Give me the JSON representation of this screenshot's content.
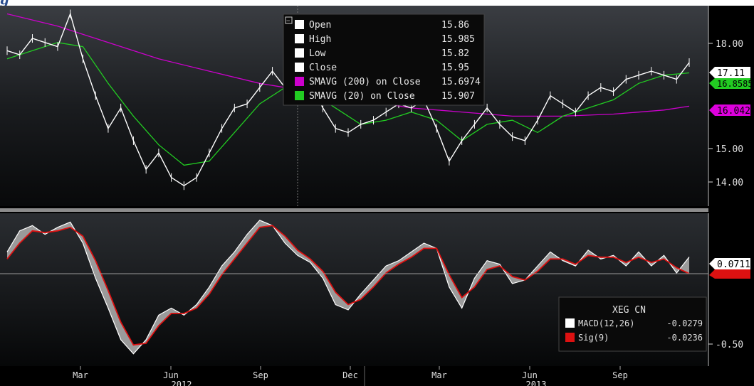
{
  "header": {
    "title_fragment": "g"
  },
  "colors": {
    "background": "#000000",
    "price": "#ffffff",
    "sma200": "#cc00cc",
    "sma20": "#22cc22",
    "macd_fill": "#9a9a9a",
    "signal": "#dd1111",
    "separator": "#8c8c8c",
    "axis_text": "#e0e0e0"
  },
  "legend_top": {
    "items": [
      {
        "label": "Open",
        "value": "15.86",
        "swatch": "#ffffff"
      },
      {
        "label": "High",
        "value": "15.985",
        "swatch": "#ffffff"
      },
      {
        "label": "Low",
        "value": "15.82",
        "swatch": "#ffffff"
      },
      {
        "label": "Close",
        "value": "15.95",
        "swatch": "#ffffff"
      },
      {
        "label": "SMAVG (200) on Close",
        "value": "15.6974",
        "swatch": "#cc00cc"
      },
      {
        "label": "SMAVG (20) on Close",
        "value": "15.907",
        "swatch": "#22cc22"
      }
    ],
    "collapse_glyph": "−"
  },
  "legend_bottom": {
    "ticker": "XEG CN",
    "items": [
      {
        "label": "MACD(12,26)",
        "value": "-0.0279",
        "swatch": "#ffffff"
      },
      {
        "label": "Sig(9)",
        "value": "-0.0236",
        "swatch": "#dd1111"
      }
    ]
  },
  "badges": {
    "last_price": "17.11",
    "sma20_value": "16.8585",
    "sma200_value": "16.0427",
    "macd_last": "0.0711"
  },
  "chart_data": [
    {
      "type": "line",
      "panel": "price",
      "x_axis": {
        "month_labels": [
          "Mar",
          "Jun",
          "Sep",
          "Dec",
          "Mar",
          "Jun",
          "Sep"
        ],
        "year_labels": [
          "2012",
          "2013"
        ]
      },
      "y_axis": {
        "ticks": [
          "18.00",
          "15.00",
          "14.00"
        ],
        "ylim": [
          13.6,
          18.5
        ]
      },
      "grid": false,
      "series": [
        {
          "name": "Close",
          "points": [
            [
              0,
              17.4
            ],
            [
              0.5,
              17.3
            ],
            [
              1,
              17.7
            ],
            [
              1.5,
              17.6
            ],
            [
              2,
              17.5
            ],
            [
              2.5,
              18.3
            ],
            [
              3,
              17.2
            ],
            [
              3.5,
              16.3
            ],
            [
              4,
              15.5
            ],
            [
              4.5,
              16.0
            ],
            [
              5,
              15.2
            ],
            [
              5.5,
              14.5
            ],
            [
              6,
              14.9
            ],
            [
              6.5,
              14.3
            ],
            [
              7,
              14.1
            ],
            [
              7.5,
              14.3
            ],
            [
              8,
              14.9
            ],
            [
              8.5,
              15.5
            ],
            [
              9,
              16.0
            ],
            [
              9.5,
              16.1
            ],
            [
              10,
              16.5
            ],
            [
              10.5,
              16.9
            ],
            [
              11,
              16.5
            ],
            [
              11.5,
              16.2
            ],
            [
              12,
              16.6
            ],
            [
              12.5,
              16.0
            ],
            [
              13,
              15.5
            ],
            [
              13.5,
              15.4
            ],
            [
              14,
              15.6
            ],
            [
              14.5,
              15.7
            ],
            [
              15,
              15.9
            ],
            [
              15.5,
              16.1
            ],
            [
              16,
              16.0
            ],
            [
              16.5,
              16.2
            ],
            [
              17,
              15.5
            ],
            [
              17.5,
              14.7
            ],
            [
              18,
              15.2
            ],
            [
              18.5,
              15.6
            ],
            [
              19,
              16.0
            ],
            [
              19.5,
              15.6
            ],
            [
              20,
              15.3
            ],
            [
              20.5,
              15.2
            ],
            [
              21,
              15.7
            ],
            [
              21.5,
              16.3
            ],
            [
              22,
              16.1
            ],
            [
              22.5,
              15.9
            ],
            [
              23,
              16.3
            ],
            [
              23.5,
              16.5
            ],
            [
              24,
              16.4
            ],
            [
              24.5,
              16.7
            ],
            [
              25,
              16.8
            ],
            [
              25.5,
              16.9
            ],
            [
              26,
              16.8
            ],
            [
              26.5,
              16.7
            ],
            [
              27,
              17.11
            ]
          ]
        },
        {
          "name": "SMAVG (20) on Close",
          "points": [
            [
              0,
              17.2
            ],
            [
              1,
              17.4
            ],
            [
              2,
              17.6
            ],
            [
              3,
              17.5
            ],
            [
              4,
              16.6
            ],
            [
              5,
              15.8
            ],
            [
              6,
              15.1
            ],
            [
              7,
              14.6
            ],
            [
              8,
              14.7
            ],
            [
              9,
              15.4
            ],
            [
              10,
              16.1
            ],
            [
              11,
              16.5
            ],
            [
              12,
              16.4
            ],
            [
              13,
              16.0
            ],
            [
              14,
              15.6
            ],
            [
              15,
              15.7
            ],
            [
              16,
              15.9
            ],
            [
              17,
              15.7
            ],
            [
              18,
              15.2
            ],
            [
              19,
              15.6
            ],
            [
              20,
              15.7
            ],
            [
              21,
              15.4
            ],
            [
              22,
              15.8
            ],
            [
              23,
              16.0
            ],
            [
              24,
              16.2
            ],
            [
              25,
              16.6
            ],
            [
              26,
              16.8
            ],
            [
              27,
              16.8585
            ]
          ]
        },
        {
          "name": "SMAVG (200) on Close",
          "points": [
            [
              0,
              18.3
            ],
            [
              2,
              18.0
            ],
            [
              4,
              17.6
            ],
            [
              6,
              17.2
            ],
            [
              8,
              16.9
            ],
            [
              10,
              16.6
            ],
            [
              12,
              16.4
            ],
            [
              14,
              16.2
            ],
            [
              16,
              16.0
            ],
            [
              18,
              15.9
            ],
            [
              20,
              15.8
            ],
            [
              22,
              15.8
            ],
            [
              24,
              15.85
            ],
            [
              26,
              15.95
            ],
            [
              27,
              16.0427
            ]
          ]
        }
      ]
    },
    {
      "type": "area",
      "panel": "macd",
      "y_axis": {
        "ticks": [
          "-0.50"
        ],
        "ylim": [
          -0.55,
          0.32
        ]
      },
      "grid": false,
      "series": [
        {
          "name": "MACD(12,26)",
          "points": [
            [
              0,
              0.1
            ],
            [
              0.5,
              0.22
            ],
            [
              1,
              0.25
            ],
            [
              1.5,
              0.2
            ],
            [
              2,
              0.24
            ],
            [
              2.5,
              0.27
            ],
            [
              3,
              0.15
            ],
            [
              3.5,
              -0.05
            ],
            [
              4,
              -0.22
            ],
            [
              4.5,
              -0.4
            ],
            [
              5,
              -0.48
            ],
            [
              5.5,
              -0.4
            ],
            [
              6,
              -0.26
            ],
            [
              6.5,
              -0.22
            ],
            [
              7,
              -0.26
            ],
            [
              7.5,
              -0.2
            ],
            [
              8,
              -0.1
            ],
            [
              8.5,
              0.02
            ],
            [
              9,
              0.1
            ],
            [
              9.5,
              0.2
            ],
            [
              10,
              0.28
            ],
            [
              10.5,
              0.25
            ],
            [
              11,
              0.15
            ],
            [
              11.5,
              0.08
            ],
            [
              12,
              0.04
            ],
            [
              12.5,
              -0.05
            ],
            [
              13,
              -0.2
            ],
            [
              13.5,
              -0.23
            ],
            [
              14,
              -0.14
            ],
            [
              14.5,
              -0.06
            ],
            [
              15,
              0.02
            ],
            [
              15.5,
              0.05
            ],
            [
              16,
              0.1
            ],
            [
              16.5,
              0.15
            ],
            [
              17,
              0.12
            ],
            [
              17.5,
              -0.1
            ],
            [
              18,
              -0.22
            ],
            [
              18.5,
              -0.05
            ],
            [
              19,
              0.05
            ],
            [
              19.5,
              0.03
            ],
            [
              20,
              -0.08
            ],
            [
              20.5,
              -0.06
            ],
            [
              21,
              0.02
            ],
            [
              21.5,
              0.1
            ],
            [
              22,
              0.05
            ],
            [
              22.5,
              0.02
            ],
            [
              23,
              0.11
            ],
            [
              23.5,
              0.06
            ],
            [
              24,
              0.08
            ],
            [
              24.5,
              0.02
            ],
            [
              25,
              0.1
            ],
            [
              25.5,
              0.02
            ],
            [
              26,
              0.08
            ],
            [
              26.5,
              -0.02
            ],
            [
              27,
              0.0711
            ]
          ]
        },
        {
          "name": "Sig(9)",
          "points": [
            [
              0,
              0.06
            ],
            [
              0.5,
              0.15
            ],
            [
              1,
              0.22
            ],
            [
              1.5,
              0.21
            ],
            [
              2,
              0.22
            ],
            [
              2.5,
              0.24
            ],
            [
              3,
              0.19
            ],
            [
              3.5,
              0.05
            ],
            [
              4,
              -0.12
            ],
            [
              4.5,
              -0.3
            ],
            [
              5,
              -0.43
            ],
            [
              5.5,
              -0.42
            ],
            [
              6,
              -0.32
            ],
            [
              6.5,
              -0.25
            ],
            [
              7,
              -0.25
            ],
            [
              7.5,
              -0.22
            ],
            [
              8,
              -0.14
            ],
            [
              8.5,
              -0.03
            ],
            [
              9,
              0.06
            ],
            [
              9.5,
              0.15
            ],
            [
              10,
              0.24
            ],
            [
              10.5,
              0.25
            ],
            [
              11,
              0.19
            ],
            [
              11.5,
              0.11
            ],
            [
              12,
              0.06
            ],
            [
              12.5,
              -0.01
            ],
            [
              13,
              -0.13
            ],
            [
              13.5,
              -0.2
            ],
            [
              14,
              -0.17
            ],
            [
              14.5,
              -0.1
            ],
            [
              15,
              -0.02
            ],
            [
              15.5,
              0.03
            ],
            [
              16,
              0.07
            ],
            [
              16.5,
              0.12
            ],
            [
              17,
              0.12
            ],
            [
              17.5,
              -0.03
            ],
            [
              18,
              -0.16
            ],
            [
              18.5,
              -0.1
            ],
            [
              19,
              0.0
            ],
            [
              19.5,
              0.02
            ],
            [
              20,
              -0.04
            ],
            [
              20.5,
              -0.06
            ],
            [
              21,
              -0.01
            ],
            [
              21.5,
              0.06
            ],
            [
              22,
              0.06
            ],
            [
              22.5,
              0.03
            ],
            [
              23,
              0.08
            ],
            [
              23.5,
              0.07
            ],
            [
              24,
              0.07
            ],
            [
              24.5,
              0.04
            ],
            [
              25,
              0.07
            ],
            [
              25.5,
              0.04
            ],
            [
              26,
              0.06
            ],
            [
              26.5,
              0.01
            ],
            [
              27,
              -0.0236
            ]
          ]
        }
      ]
    }
  ]
}
